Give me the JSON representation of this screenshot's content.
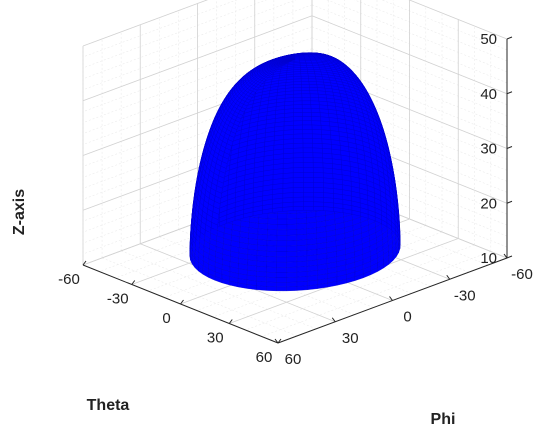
{
  "chart_data": {
    "type": "surface",
    "title": "",
    "xlabel": "Phi",
    "ylabel": "Theta",
    "zlabel": "Z-axis",
    "x_ticks": [
      "-60",
      "-30",
      "0",
      "30",
      "60"
    ],
    "y_ticks": [
      "-60",
      "-30",
      "0",
      "30",
      "60"
    ],
    "z_ticks": [
      "10",
      "20",
      "30",
      "40",
      "50"
    ],
    "xlim": [
      -60,
      60
    ],
    "ylim": [
      -60,
      60
    ],
    "zlim": [
      10,
      50
    ],
    "grid": true,
    "legend": "none",
    "surface_color": "#0000ff",
    "surface_shape": "dome",
    "dome_base_z": 12,
    "dome_peak_z": 45,
    "dome_extent": [
      -42,
      42
    ]
  }
}
